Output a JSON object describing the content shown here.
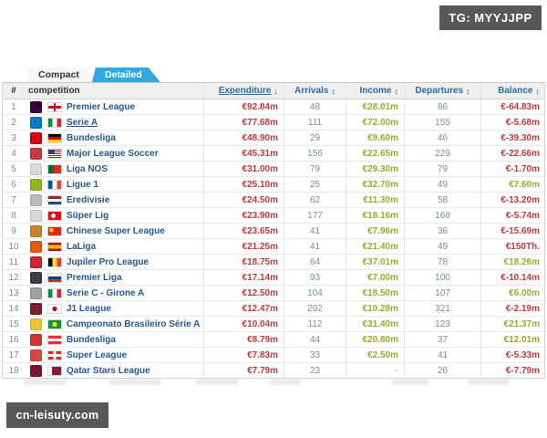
{
  "overlays": {
    "tg_label": "TG: MYYJJPP",
    "watermark": "cn-leisuty.com"
  },
  "tabs": [
    {
      "label": "Compact",
      "active": false
    },
    {
      "label": "Detailed",
      "active": true
    }
  ],
  "icons": {
    "sort_desc": "↓",
    "sort_both": "↕"
  },
  "colors": {
    "accent_blue": "#2fa9e0",
    "header_link": "#2a6d9e",
    "name_navy": "#24588e",
    "negative_red": "#bf3a3a",
    "positive_green": "#9aaa2f",
    "count_teal": "#74929a",
    "dash_gray": "#999999"
  },
  "table": {
    "headers": {
      "rank": "#",
      "competition": "competition",
      "expenditure": "Expenditure",
      "arrivals": "Arrivals",
      "income": "Income",
      "departures": "Departures",
      "balance": "Balance"
    },
    "sort": {
      "column": "Expenditure",
      "direction": "desc"
    },
    "rows": [
      {
        "rank": "1",
        "name": "Premier League",
        "flag": "england",
        "logo_color": "#38003c",
        "expenditure": "€92.84m",
        "arrivals": "48",
        "income": "€28.01m",
        "departures": "86",
        "balance": "€-64.83m",
        "balance_red": true,
        "underline": false
      },
      {
        "rank": "2",
        "name": "Serie A",
        "flag": "italy",
        "logo_color": "#0a7bc2",
        "expenditure": "€77.68m",
        "arrivals": "111",
        "income": "€72.00m",
        "departures": "155",
        "balance": "€-5.68m",
        "balance_red": true,
        "underline": true
      },
      {
        "rank": "3",
        "name": "Bundesliga",
        "flag": "germany",
        "logo_color": "#d3010c",
        "expenditure": "€48.90m",
        "arrivals": "29",
        "income": "€9.60m",
        "departures": "46",
        "balance": "€-39.30m",
        "balance_red": true,
        "underline": false
      },
      {
        "rank": "4",
        "name": "Major League Soccer",
        "flag": "usa",
        "logo_color": "#c8393f",
        "expenditure": "€45.31m",
        "arrivals": "156",
        "income": "€22.65m",
        "departures": "229",
        "balance": "€-22.66m",
        "balance_red": true,
        "underline": false
      },
      {
        "rank": "5",
        "name": "Liga NOS",
        "flag": "portugal",
        "logo_color": "#d7dce0",
        "expenditure": "€31.00m",
        "arrivals": "79",
        "income": "€29.30m",
        "departures": "79",
        "balance": "€-1.70m",
        "balance_red": true,
        "underline": false
      },
      {
        "rank": "6",
        "name": "Ligue 1",
        "flag": "france",
        "logo_color": "#8cb81e",
        "expenditure": "€25.10m",
        "arrivals": "25",
        "income": "€32.70m",
        "departures": "49",
        "balance": "€7.60m",
        "balance_red": false,
        "underline": false
      },
      {
        "rank": "7",
        "name": "Eredivisie",
        "flag": "netherlands",
        "logo_color": "#b9bcc0",
        "expenditure": "€24.50m",
        "arrivals": "62",
        "income": "€11.30m",
        "departures": "58",
        "balance": "€-13.20m",
        "balance_red": true,
        "underline": false
      },
      {
        "rank": "8",
        "name": "Süper Lig",
        "flag": "turkey",
        "logo_color": "#d9d9d9",
        "expenditure": "€23.90m",
        "arrivals": "177",
        "income": "€18.16m",
        "departures": "168",
        "balance": "€-5.74m",
        "balance_red": true,
        "underline": false
      },
      {
        "rank": "9",
        "name": "Chinese Super League",
        "flag": "china",
        "logo_color": "#c8842c",
        "expenditure": "€23.65m",
        "arrivals": "41",
        "income": "€7.96m",
        "departures": "36",
        "balance": "€-15.69m",
        "balance_red": true,
        "underline": false
      },
      {
        "rank": "10",
        "name": "LaLiga",
        "flag": "spain",
        "logo_color": "#e4590f",
        "expenditure": "€21.25m",
        "arrivals": "41",
        "income": "€21.40m",
        "departures": "49",
        "balance": "€150Th.",
        "balance_red": true,
        "underline": false
      },
      {
        "rank": "11",
        "name": "Jupiler Pro League",
        "flag": "belgium",
        "logo_color": "#cf2233",
        "expenditure": "€18.75m",
        "arrivals": "64",
        "income": "€37.01m",
        "departures": "78",
        "balance": "€18.26m",
        "balance_red": false,
        "underline": false
      },
      {
        "rank": "12",
        "name": "Premier Liga",
        "flag": "russia",
        "logo_color": "#3c3c44",
        "expenditure": "€17.14m",
        "arrivals": "93",
        "income": "€7.00m",
        "departures": "100",
        "balance": "€-10.14m",
        "balance_red": true,
        "underline": false
      },
      {
        "rank": "13",
        "name": "Serie C - Girone A",
        "flag": "italy",
        "logo_color": "#9aa0a6",
        "expenditure": "€12.50m",
        "arrivals": "104",
        "income": "€18.50m",
        "departures": "107",
        "balance": "€6.00m",
        "balance_red": false,
        "underline": false
      },
      {
        "rank": "14",
        "name": "J1 League",
        "flag": "japan",
        "logo_color": "#7a1f2b",
        "expenditure": "€12.47m",
        "arrivals": "292",
        "income": "€10.28m",
        "departures": "321",
        "balance": "€-2.19m",
        "balance_red": true,
        "underline": false
      },
      {
        "rank": "15",
        "name": "Campeonato Brasileiro Série A",
        "flag": "brazil",
        "logo_color": "#e8c532",
        "expenditure": "€10.04m",
        "arrivals": "112",
        "income": "€31.40m",
        "departures": "123",
        "balance": "€21.37m",
        "balance_red": false,
        "underline": false
      },
      {
        "rank": "16",
        "name": "Bundesliga",
        "flag": "austria",
        "logo_color": "#d23333",
        "expenditure": "€8.79m",
        "arrivals": "44",
        "income": "€20.80m",
        "departures": "37",
        "balance": "€12.01m",
        "balance_red": false,
        "underline": false
      },
      {
        "rank": "17",
        "name": "Super League",
        "flag": "switzerland",
        "logo_color": "#d24a43",
        "expenditure": "€7.83m",
        "arrivals": "33",
        "income": "€2.50m",
        "departures": "41",
        "balance": "€-5.33m",
        "balance_red": true,
        "underline": false
      },
      {
        "rank": "18",
        "name": "Qatar Stars League",
        "flag": "qatar",
        "logo_color": "#7a1533",
        "expenditure": "€7.79m",
        "arrivals": "23",
        "income": "-",
        "departures": "26",
        "balance": "€-7.79m",
        "balance_red": true,
        "underline": false
      }
    ]
  }
}
